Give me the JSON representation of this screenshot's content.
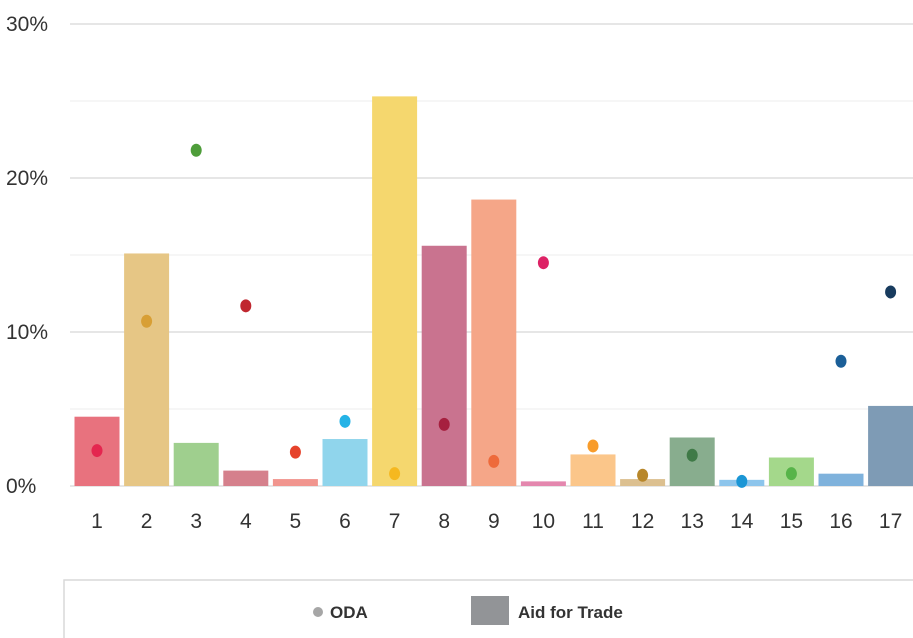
{
  "chart_data": {
    "type": "bar",
    "categories": [
      "1",
      "2",
      "3",
      "4",
      "5",
      "6",
      "7",
      "8",
      "9",
      "10",
      "11",
      "12",
      "13",
      "14",
      "15",
      "16",
      "17"
    ],
    "series": [
      {
        "name": "Aid for Trade",
        "kind": "bar",
        "values": [
          4.5,
          15.1,
          2.8,
          1.0,
          0.45,
          3.05,
          25.3,
          15.6,
          18.6,
          0.3,
          2.05,
          0.45,
          3.15,
          0.4,
          1.85,
          0.8,
          5.2
        ]
      },
      {
        "name": "ODA",
        "kind": "dot",
        "values": [
          2.3,
          10.7,
          21.8,
          11.7,
          2.2,
          4.2,
          0.8,
          4.0,
          1.6,
          14.5,
          2.6,
          0.7,
          2.0,
          0.3,
          0.8,
          8.1,
          12.6
        ]
      }
    ],
    "bar_colors": [
      "#e8727e",
      "#e6c685",
      "#9fcf8e",
      "#d5808c",
      "#f1958e",
      "#90d5ec",
      "#f5d76e",
      "#c9738f",
      "#f5a688",
      "#e487ae",
      "#fbc68a",
      "#dcc090",
      "#88ad8e",
      "#8dc5ec",
      "#a4d88b",
      "#7fb2dc",
      "#7e9bb5"
    ],
    "dot_colors": [
      "#e4264f",
      "#d89f35",
      "#4e9d3a",
      "#c0272f",
      "#e6432b",
      "#25b3e6",
      "#f5b81f",
      "#a6203f",
      "#ee6a3b",
      "#dd2265",
      "#f89c2b",
      "#b8872a",
      "#3f7a47",
      "#1b96d5",
      "#57b449",
      "#1b5f98",
      "#183b5e"
    ],
    "ylim": [
      0,
      30
    ],
    "yticks": [
      "0%",
      "10%",
      "20%",
      "30%"
    ],
    "grid": true,
    "legend_position": "bottom",
    "legend": {
      "oda_label": "ODA",
      "aft_label": "Aid for Trade",
      "oda_color": "#a6a6a6",
      "aft_color": "#929497"
    }
  }
}
